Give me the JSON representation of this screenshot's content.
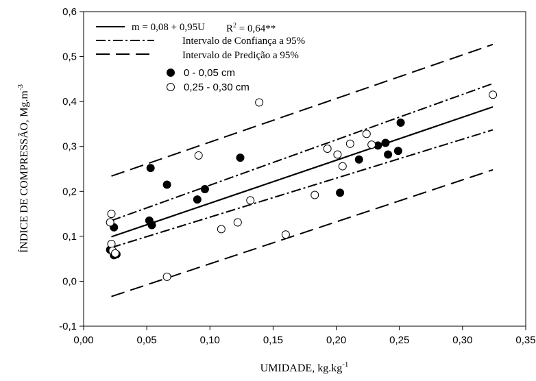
{
  "chart_data": {
    "type": "scatter",
    "xlabel": "UMIDADE, kg.kg",
    "xlabel_sup": "-1",
    "ylabel": "ÍNDICE DE COMPRESSÃO, Mg.m",
    "ylabel_sup": "-3",
    "xlim": [
      0.0,
      0.35
    ],
    "ylim": [
      -0.1,
      0.6
    ],
    "x_ticks": [
      "0,00",
      "0,05",
      "0,10",
      "0,15",
      "0,20",
      "0,25",
      "0,30",
      "0,35"
    ],
    "y_ticks": [
      "-0,1",
      "0,0",
      "0,1",
      "0,2",
      "0,3",
      "0,4",
      "0,5",
      "0,6"
    ],
    "grid": false,
    "legend_position": "top-left",
    "legend": {
      "equation": "m = 0,08 + 0,95U",
      "r2_prefix": "R",
      "r2_sup": "2",
      "r2_value": " = 0,64**",
      "confidence": "Intervalo de Confiança a 95%",
      "prediction": "Intervalo de Predição a 95%",
      "series_filled": "0 - 0,05 cm",
      "series_open": "0,25 - 0,30 cm"
    },
    "lines": {
      "regression": [
        [
          0.022,
          0.099
        ],
        [
          0.324,
          0.388
        ]
      ],
      "confidence_upper": [
        [
          0.022,
          0.135
        ],
        [
          0.324,
          0.44
        ]
      ],
      "confidence_lower": [
        [
          0.022,
          0.075
        ],
        [
          0.324,
          0.337
        ]
      ],
      "prediction_upper": [
        [
          0.022,
          0.234
        ],
        [
          0.324,
          0.527
        ]
      ],
      "prediction_lower": [
        [
          0.022,
          -0.034
        ],
        [
          0.324,
          0.248
        ]
      ]
    },
    "series": [
      {
        "name": "0 - 0,05 cm",
        "marker": "filled-circle",
        "points": [
          [
            0.021,
            0.07
          ],
          [
            0.024,
            0.12
          ],
          [
            0.024,
            0.058
          ],
          [
            0.026,
            0.06
          ],
          [
            0.052,
            0.135
          ],
          [
            0.053,
            0.252
          ],
          [
            0.054,
            0.125
          ],
          [
            0.066,
            0.215
          ],
          [
            0.09,
            0.182
          ],
          [
            0.096,
            0.205
          ],
          [
            0.124,
            0.275
          ],
          [
            0.203,
            0.197
          ],
          [
            0.218,
            0.271
          ],
          [
            0.233,
            0.302
          ],
          [
            0.239,
            0.308
          ],
          [
            0.241,
            0.282
          ],
          [
            0.249,
            0.29
          ],
          [
            0.251,
            0.353
          ]
        ]
      },
      {
        "name": "0,25 - 0,30 cm",
        "marker": "open-circle",
        "points": [
          [
            0.021,
            0.131
          ],
          [
            0.022,
            0.15
          ],
          [
            0.022,
            0.083
          ],
          [
            0.023,
            0.068
          ],
          [
            0.025,
            0.062
          ],
          [
            0.066,
            0.01
          ],
          [
            0.091,
            0.28
          ],
          [
            0.109,
            0.116
          ],
          [
            0.122,
            0.131
          ],
          [
            0.132,
            0.18
          ],
          [
            0.139,
            0.398
          ],
          [
            0.16,
            0.104
          ],
          [
            0.183,
            0.192
          ],
          [
            0.193,
            0.295
          ],
          [
            0.201,
            0.282
          ],
          [
            0.205,
            0.256
          ],
          [
            0.211,
            0.306
          ],
          [
            0.224,
            0.328
          ],
          [
            0.228,
            0.304
          ],
          [
            0.324,
            0.415
          ]
        ]
      }
    ]
  }
}
